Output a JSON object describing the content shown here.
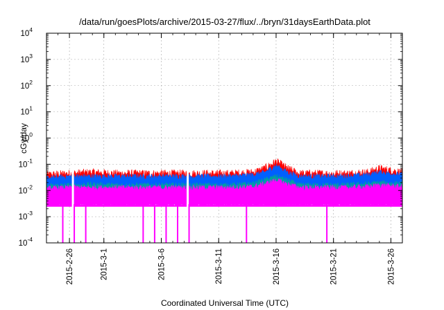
{
  "chart_data": {
    "type": "area",
    "title": "/data/run/goesPlots/archive/2015-03-27/flux/../bryn/31daysEarthData.plot",
    "xlabel": "Coordinated Universal Time (UTC)",
    "ylabel": "cGy/day",
    "y_scale": "log",
    "ylim": [
      0.0001,
      10000
    ],
    "y_ticks": [
      {
        "base": "10",
        "exp": "-4",
        "value": 0.0001
      },
      {
        "base": "10",
        "exp": "-3",
        "value": 0.001
      },
      {
        "base": "10",
        "exp": "-2",
        "value": 0.01
      },
      {
        "base": "10",
        "exp": "-1",
        "value": 0.1
      },
      {
        "base": "10",
        "exp": "0",
        "value": 1
      },
      {
        "base": "10",
        "exp": "1",
        "value": 10
      },
      {
        "base": "10",
        "exp": "2",
        "value": 100
      },
      {
        "base": "10",
        "exp": "3",
        "value": 1000
      },
      {
        "base": "10",
        "exp": "4",
        "value": 10000
      }
    ],
    "xlim": [
      "2015-02-24",
      "2015-03-27"
    ],
    "x_ticks": [
      "2015-2-26",
      "2015-3-1",
      "2015-3-6",
      "2015-3-11",
      "2015-3-16",
      "2015-3-21",
      "2015-3-26"
    ],
    "grid": true,
    "series": [
      {
        "color": "#ff0000",
        "x": [
          "2015-02-24",
          "2015-02-26",
          "2015-02-28",
          "2015-03-02",
          "2015-03-04",
          "2015-03-06",
          "2015-03-08",
          "2015-03-10",
          "2015-03-12",
          "2015-03-14",
          "2015-03-15",
          "2015-03-16",
          "2015-03-17",
          "2015-03-18",
          "2015-03-20",
          "2015-03-22",
          "2015-03-24",
          "2015-03-25",
          "2015-03-27"
        ],
        "values": [
          0.04,
          0.045,
          0.05,
          0.045,
          0.045,
          0.045,
          0.045,
          0.045,
          0.045,
          0.05,
          0.07,
          0.13,
          0.07,
          0.045,
          0.045,
          0.045,
          0.05,
          0.07,
          0.05
        ]
      },
      {
        "color": "#0060ff",
        "x": [
          "2015-02-24",
          "2015-02-26",
          "2015-02-28",
          "2015-03-02",
          "2015-03-04",
          "2015-03-06",
          "2015-03-08",
          "2015-03-10",
          "2015-03-12",
          "2015-03-14",
          "2015-03-15",
          "2015-03-16",
          "2015-03-17",
          "2015-03-18",
          "2015-03-20",
          "2015-03-22",
          "2015-03-24",
          "2015-03-25",
          "2015-03-27"
        ],
        "values": [
          0.03,
          0.035,
          0.035,
          0.035,
          0.035,
          0.035,
          0.035,
          0.035,
          0.035,
          0.04,
          0.05,
          0.09,
          0.05,
          0.035,
          0.035,
          0.035,
          0.04,
          0.05,
          0.04
        ]
      },
      {
        "color": "#00a0a0",
        "x": [
          "2015-02-24",
          "2015-02-26",
          "2015-02-28",
          "2015-03-02",
          "2015-03-04",
          "2015-03-06",
          "2015-03-08",
          "2015-03-10",
          "2015-03-12",
          "2015-03-14",
          "2015-03-15",
          "2015-03-16",
          "2015-03-17",
          "2015-03-18",
          "2015-03-20",
          "2015-03-22",
          "2015-03-24",
          "2015-03-25",
          "2015-03-27"
        ],
        "values": [
          0.015,
          0.016,
          0.017,
          0.016,
          0.016,
          0.016,
          0.016,
          0.016,
          0.016,
          0.018,
          0.025,
          0.035,
          0.025,
          0.016,
          0.016,
          0.016,
          0.018,
          0.02,
          0.018
        ]
      },
      {
        "color": "#ff00ff",
        "x": [
          "2015-02-24",
          "2015-02-26",
          "2015-02-28",
          "2015-03-02",
          "2015-03-04",
          "2015-03-06",
          "2015-03-08",
          "2015-03-10",
          "2015-03-12",
          "2015-03-14",
          "2015-03-15",
          "2015-03-16",
          "2015-03-17",
          "2015-03-18",
          "2015-03-20",
          "2015-03-22",
          "2015-03-24",
          "2015-03-25",
          "2015-03-27"
        ],
        "values": [
          0.012,
          0.013,
          0.013,
          0.013,
          0.013,
          0.013,
          0.013,
          0.013,
          0.013,
          0.014,
          0.018,
          0.025,
          0.018,
          0.013,
          0.013,
          0.013,
          0.014,
          0.016,
          0.014
        ],
        "floor": 0.003
      }
    ],
    "dropouts": [
      "2015-02-25",
      "2015-02-26",
      "2015-02-27",
      "2015-03-04",
      "2015-03-05",
      "2015-03-06",
      "2015-03-07",
      "2015-03-08",
      "2015-03-13",
      "2015-03-20"
    ]
  }
}
